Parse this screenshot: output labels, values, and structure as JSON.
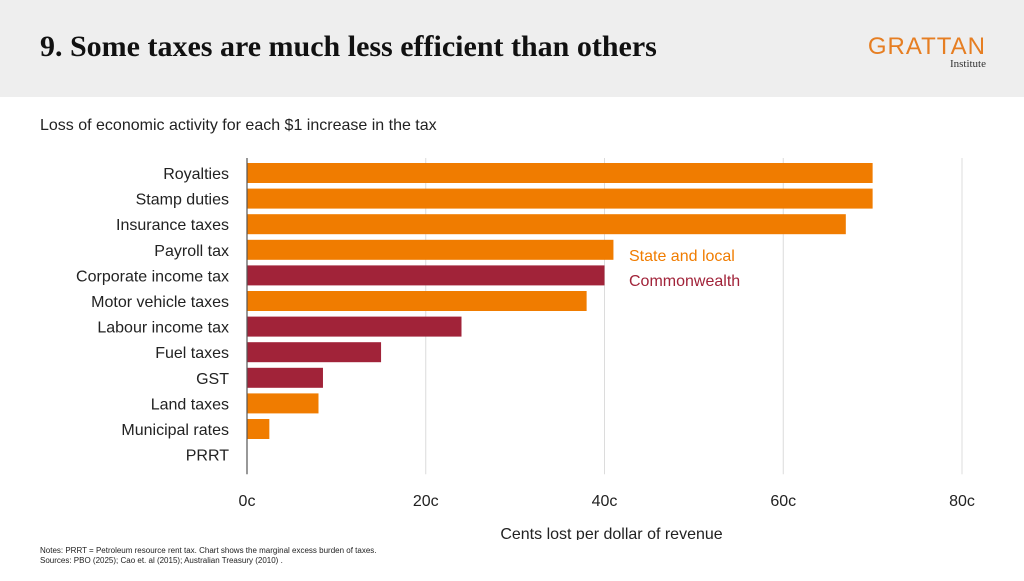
{
  "header": {
    "title": "9. Some taxes are much less efficient than others",
    "logo_text": "GRATTAN",
    "logo_sub": "Institute"
  },
  "subtitle": "Loss of economic activity for each $1 increase in the tax",
  "chart_data": {
    "type": "bar",
    "orientation": "horizontal",
    "title": "Loss of economic activity for each $1 increase in the tax",
    "xlabel": "Cents lost per dollar of revenue",
    "ylabel": "",
    "xlim": [
      0,
      80
    ],
    "xticks": [
      0,
      20,
      40,
      60,
      80
    ],
    "xtick_labels": [
      "0c",
      "20c",
      "40c",
      "60c",
      "80c"
    ],
    "grid": "vertical",
    "categories": [
      "Royalties",
      "Stamp duties",
      "Insurance taxes",
      "Payroll tax",
      "Corporate income tax",
      "Motor vehicle taxes",
      "Labour income tax",
      "Fuel taxes",
      "GST",
      "Land taxes",
      "Municipal rates",
      "PRRT"
    ],
    "values": [
      70,
      70,
      67,
      41,
      40,
      38,
      24,
      15,
      8.5,
      8,
      2.5,
      0
    ],
    "groups": [
      "State and local",
      "State and local",
      "State and local",
      "State and local",
      "Commonwealth",
      "State and local",
      "Commonwealth",
      "Commonwealth",
      "Commonwealth",
      "State and local",
      "State and local",
      "Commonwealth"
    ],
    "legend": [
      {
        "name": "State and local",
        "color": "#f07c00"
      },
      {
        "name": "Commonwealth",
        "color": "#a12339"
      }
    ],
    "legend_position": "inside-right"
  },
  "notes": {
    "line1": "Notes: PRRT = Petroleum resource rent tax. Chart shows the marginal excess burden of taxes.",
    "line2": "Sources: PBO (2025); Cao et. al (2015); Australian Treasury (2010) ."
  }
}
